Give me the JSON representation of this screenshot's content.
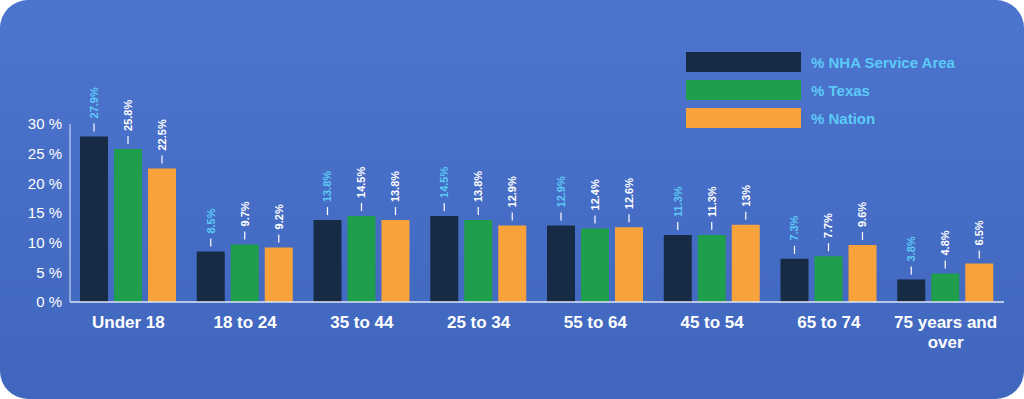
{
  "chart_data": {
    "type": "bar",
    "categories": [
      "Under 18",
      "18 to 24",
      "35 to 44",
      "25 to 34",
      "55 to 64",
      "45 to 54",
      "65 to 74",
      "75 years and over"
    ],
    "series": [
      {
        "name": "% NHA Service Area",
        "color": "#172b45",
        "values": [
          27.9,
          8.5,
          13.8,
          14.5,
          12.9,
          11.3,
          7.3,
          3.8
        ],
        "value_labels": [
          "27.9%",
          "8.5%",
          "13.8%",
          "14.5%",
          "12.9%",
          "11.3%",
          "7.3%",
          "3.8%"
        ]
      },
      {
        "name": "% Texas",
        "color": "#1f9e4b",
        "values": [
          25.8,
          9.7,
          14.5,
          13.8,
          12.4,
          11.3,
          7.7,
          4.8
        ],
        "value_labels": [
          "25.8%",
          "9.7%",
          "14.5%",
          "13.8%",
          "12.4%",
          "11.3%",
          "7.7%",
          "4.8%"
        ]
      },
      {
        "name": "% Nation",
        "color": "#f7a23b",
        "values": [
          22.5,
          9.2,
          13.8,
          12.9,
          12.6,
          13,
          9.6,
          6.5
        ],
        "value_labels": [
          "22.5%",
          "9.2%",
          "13.8%",
          "12.9%",
          "12.6%",
          "13%",
          "9.6%",
          "6.5%"
        ]
      }
    ],
    "ylim": [
      0,
      30
    ],
    "yticks": [
      {
        "value": 0,
        "label": "0 %"
      },
      {
        "value": 5,
        "label": "5 %"
      },
      {
        "value": 10,
        "label": "10 %"
      },
      {
        "value": 15,
        "label": "15 %"
      },
      {
        "value": 20,
        "label": "20 %"
      },
      {
        "value": 25,
        "label": "25 %"
      },
      {
        "value": 30,
        "label": "30 %"
      }
    ],
    "grid": false,
    "legend": "upper right",
    "data_labels": true
  }
}
